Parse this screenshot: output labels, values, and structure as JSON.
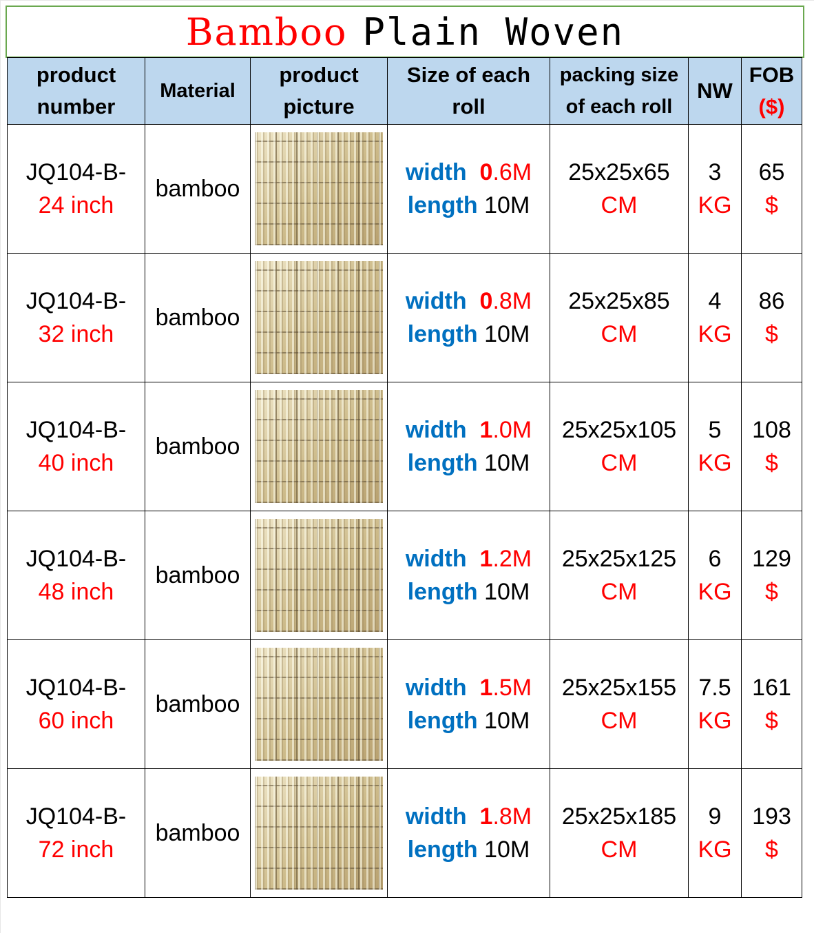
{
  "title": {
    "part1": "Bamboo",
    "part2": "Plain Woven"
  },
  "headers": {
    "product_number": [
      "product",
      "number"
    ],
    "material": "Material",
    "picture": [
      "product",
      "picture"
    ],
    "size": [
      "Size of each",
      "roll"
    ],
    "packing": [
      "packing size",
      "of each roll"
    ],
    "nw": "NW",
    "fob": [
      "FOB",
      "($)"
    ]
  },
  "rows": [
    {
      "code": "JQ104-B-",
      "inch": "24 inch",
      "material": "bamboo",
      "picture_icon": "bamboo-weave-swatch",
      "width_label": "width",
      "width_int": "0",
      "width_dec": ".6M",
      "length_label": "length",
      "length_val": "10M",
      "pack": "25x25x65",
      "pack_unit": "CM",
      "nw": "3",
      "nw_unit": "KG",
      "fob": "65",
      "fob_unit": "$"
    },
    {
      "code": "JQ104-B-",
      "inch": "32 inch",
      "material": "bamboo",
      "picture_icon": "bamboo-weave-swatch",
      "width_label": "width",
      "width_int": "0",
      "width_dec": ".8M",
      "length_label": "length",
      "length_val": "10M",
      "pack": "25x25x85",
      "pack_unit": "CM",
      "nw": "4",
      "nw_unit": "KG",
      "fob": "86",
      "fob_unit": "$"
    },
    {
      "code": "JQ104-B-",
      "inch": "40 inch",
      "material": "bamboo",
      "picture_icon": "bamboo-weave-swatch",
      "width_label": "width",
      "width_int": "1",
      "width_dec": ".0M",
      "length_label": "length",
      "length_val": "10M",
      "pack": "25x25x105",
      "pack_unit": "CM",
      "nw": "5",
      "nw_unit": "KG",
      "fob": "108",
      "fob_unit": "$"
    },
    {
      "code": "JQ104-B-",
      "inch": "48 inch",
      "material": "bamboo",
      "picture_icon": "bamboo-weave-swatch",
      "width_label": "width",
      "width_int": "1",
      "width_dec": ".2M",
      "length_label": "length",
      "length_val": "10M",
      "pack": "25x25x125",
      "pack_unit": "CM",
      "nw": "6",
      "nw_unit": "KG",
      "fob": "129",
      "fob_unit": "$"
    },
    {
      "code": "JQ104-B-",
      "inch": "60 inch",
      "material": "bamboo",
      "picture_icon": "bamboo-weave-swatch",
      "width_label": "width",
      "width_int": "1",
      "width_dec": ".5M",
      "length_label": "length",
      "length_val": "10M",
      "pack": "25x25x155",
      "pack_unit": "CM",
      "nw": "7.5",
      "nw_unit": "KG",
      "fob": "161",
      "fob_unit": "$"
    },
    {
      "code": "JQ104-B-",
      "inch": "72 inch",
      "material": "bamboo",
      "picture_icon": "bamboo-weave-swatch",
      "width_label": "width",
      "width_int": "1",
      "width_dec": ".8M",
      "length_label": "length",
      "length_val": "10M",
      "pack": "25x25x185",
      "pack_unit": "CM",
      "nw": "9",
      "nw_unit": "KG",
      "fob": "193",
      "fob_unit": "$"
    }
  ],
  "colors": {
    "title_red": "#ff0000",
    "header_bg": "#bdd7ee",
    "blue": "#0070c0",
    "red": "#ff0000",
    "title_border": "#6aa84f"
  }
}
